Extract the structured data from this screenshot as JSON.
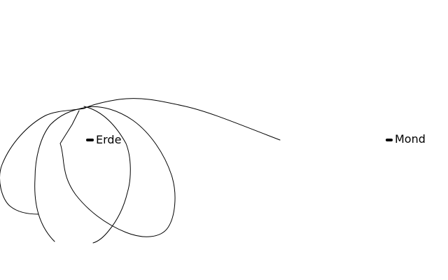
{
  "labels": {
    "earth": "Erde",
    "moon": "Mond"
  },
  "colors": {
    "background": "#ffffff",
    "trajectory": "#000000",
    "marker": "#000000",
    "text": "#000000"
  }
}
